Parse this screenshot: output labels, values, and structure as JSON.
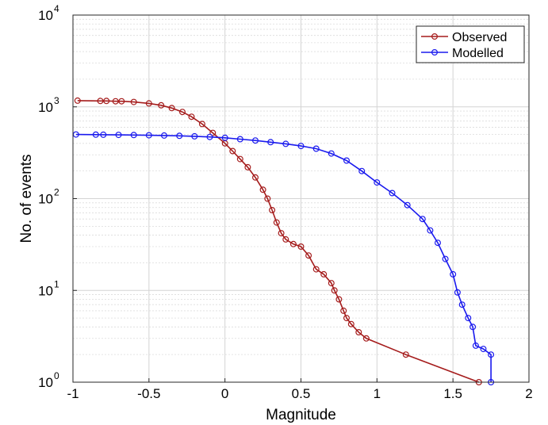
{
  "chart_data": {
    "type": "scatter",
    "title": "",
    "xlabel": "Magnitude",
    "ylabel": "No. of events",
    "xlim": [
      -1,
      2
    ],
    "ylim": [
      1,
      10000
    ],
    "yscale": "log",
    "grid": true,
    "minor_grid": true,
    "legend_position": "top-right",
    "x_ticks": [
      "-1",
      "-0.5",
      "0",
      "0.5",
      "1",
      "1.5",
      "2"
    ],
    "y_ticks": [
      {
        "base": "10",
        "exp": "0"
      },
      {
        "base": "10",
        "exp": "1"
      },
      {
        "base": "10",
        "exp": "2"
      },
      {
        "base": "10",
        "exp": "3"
      },
      {
        "base": "10",
        "exp": "4"
      }
    ],
    "series": [
      {
        "name": "Observed",
        "color": "#a51c1c",
        "marker": "circle",
        "points": [
          [
            -0.97,
            1170
          ],
          [
            -0.82,
            1160
          ],
          [
            -0.78,
            1160
          ],
          [
            -0.72,
            1150
          ],
          [
            -0.68,
            1150
          ],
          [
            -0.6,
            1130
          ],
          [
            -0.5,
            1090
          ],
          [
            -0.42,
            1040
          ],
          [
            -0.35,
            970
          ],
          [
            -0.28,
            880
          ],
          [
            -0.22,
            780
          ],
          [
            -0.15,
            650
          ],
          [
            -0.08,
            520
          ],
          [
            0.0,
            400
          ],
          [
            0.05,
            330
          ],
          [
            0.1,
            270
          ],
          [
            0.15,
            220
          ],
          [
            0.2,
            170
          ],
          [
            0.25,
            125
          ],
          [
            0.28,
            100
          ],
          [
            0.31,
            75
          ],
          [
            0.34,
            55
          ],
          [
            0.37,
            42
          ],
          [
            0.4,
            36
          ],
          [
            0.45,
            32
          ],
          [
            0.5,
            30
          ],
          [
            0.55,
            24
          ],
          [
            0.6,
            17
          ],
          [
            0.65,
            15
          ],
          [
            0.7,
            12
          ],
          [
            0.72,
            10
          ],
          [
            0.75,
            8
          ],
          [
            0.78,
            6
          ],
          [
            0.8,
            5
          ],
          [
            0.83,
            4.3
          ],
          [
            0.88,
            3.5
          ],
          [
            0.93,
            3
          ],
          [
            1.19,
            2
          ],
          [
            1.67,
            1
          ]
        ]
      },
      {
        "name": "Modelled",
        "color": "#1a1aee",
        "marker": "circle",
        "points": [
          [
            -0.98,
            500
          ],
          [
            -0.85,
            498
          ],
          [
            -0.8,
            497
          ],
          [
            -0.7,
            495
          ],
          [
            -0.6,
            493
          ],
          [
            -0.5,
            490
          ],
          [
            -0.4,
            487
          ],
          [
            -0.3,
            483
          ],
          [
            -0.2,
            478
          ],
          [
            -0.1,
            470
          ],
          [
            0.0,
            460
          ],
          [
            0.1,
            445
          ],
          [
            0.2,
            430
          ],
          [
            0.3,
            412
          ],
          [
            0.4,
            395
          ],
          [
            0.5,
            375
          ],
          [
            0.6,
            350
          ],
          [
            0.7,
            310
          ],
          [
            0.8,
            260
          ],
          [
            0.9,
            200
          ],
          [
            1.0,
            150
          ],
          [
            1.1,
            115
          ],
          [
            1.2,
            85
          ],
          [
            1.3,
            60
          ],
          [
            1.35,
            45
          ],
          [
            1.4,
            33
          ],
          [
            1.45,
            22
          ],
          [
            1.5,
            15
          ],
          [
            1.53,
            9.5
          ],
          [
            1.56,
            7
          ],
          [
            1.6,
            5
          ],
          [
            1.63,
            4
          ],
          [
            1.65,
            2.5
          ],
          [
            1.7,
            2.3
          ],
          [
            1.75,
            2
          ],
          [
            1.75,
            1
          ]
        ]
      }
    ]
  }
}
